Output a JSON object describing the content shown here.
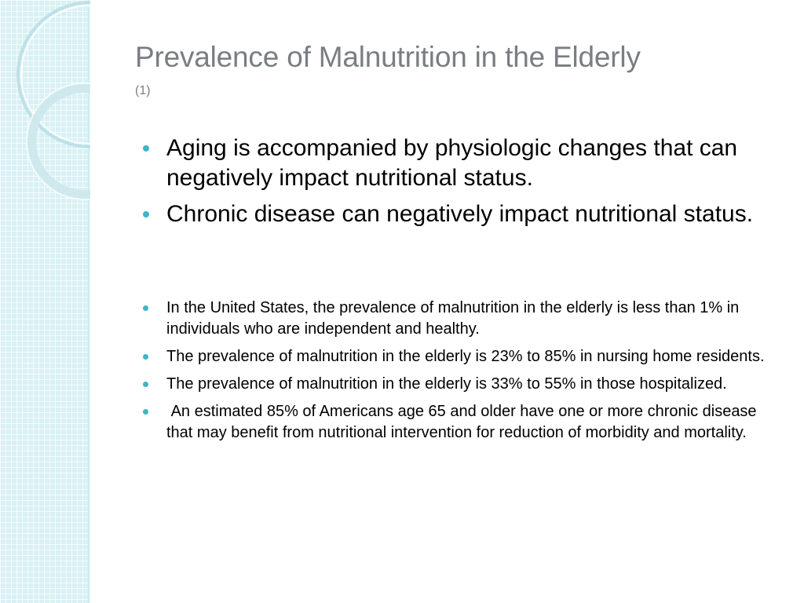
{
  "slide": {
    "title": "Prevalence of Malnutrition in the Elderly",
    "subtitle": "(1)",
    "main_bullets": [
      "Aging is accompanied by physiologic changes that can negatively impact nutritional status.",
      "Chronic disease can negatively impact nutritional status."
    ],
    "detail_bullets": [
      "In the United States, the prevalence of malnutrition in the elderly is less than 1% in individuals who are independent and healthy.",
      "The prevalence of malnutrition in the elderly is 23% to 85% in nursing home residents.",
      "The prevalence of malnutrition in the elderly is 33% to 55% in those hospitalized.",
      " An estimated 85% of Americans age 65 and older have one or more chronic disease that may benefit from nutritional intervention for reduction of morbidity and mortality."
    ]
  },
  "theme": {
    "title_color": "#7a7e82",
    "bullet_color": "#3fb4c8",
    "panel_color": "#d9f1f4"
  }
}
